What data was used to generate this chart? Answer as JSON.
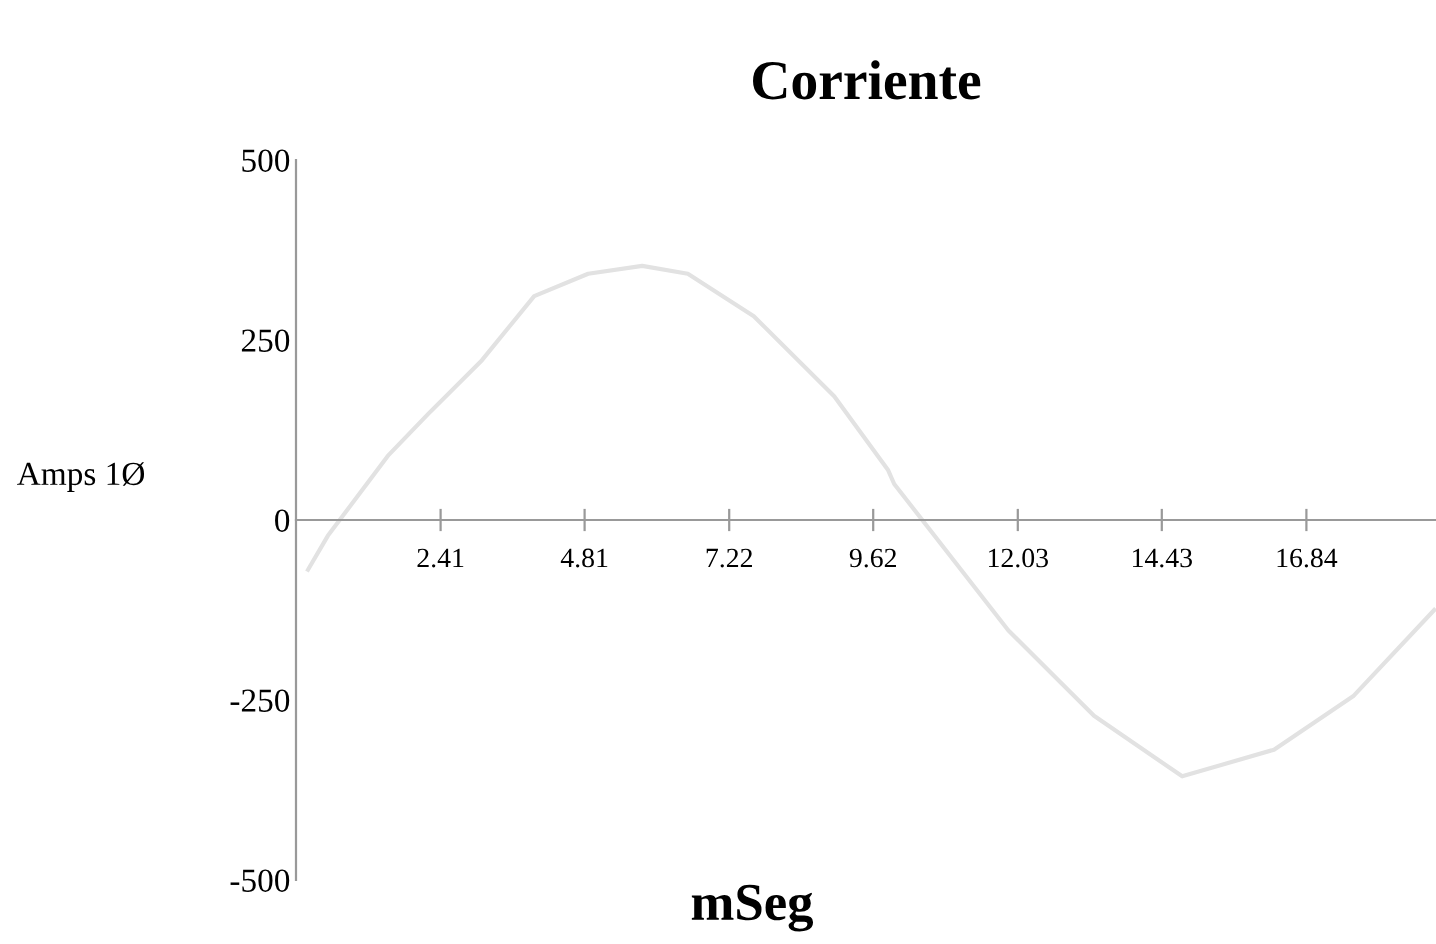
{
  "chart_data": {
    "type": "line",
    "title": "Corriente",
    "xlabel": "mSeg",
    "ylabel": "Amps 1Ø",
    "x": [
      0.2,
      0.53,
      1.53,
      2.2,
      3.1,
      3.97,
      4.87,
      5.77,
      6.53,
      7.63,
      8.97,
      9.87,
      9.97,
      11.87,
      13.3,
      14.77,
      16.3,
      17.63,
      18.97
    ],
    "series": [
      {
        "color": "#e2e2e2",
        "values": [
          -69,
          -22,
          89,
          147,
          222,
          311,
          342,
          353,
          342,
          283,
          172,
          69,
          50,
          -153,
          -272,
          -356,
          -319,
          -244,
          -125
        ]
      }
    ],
    "xlim": [
      0,
      19
    ],
    "ylim": [
      -500,
      500
    ],
    "xticks": [
      2.41,
      4.81,
      7.22,
      9.62,
      12.03,
      14.43,
      16.84
    ],
    "yticks": [
      -500,
      -250,
      0,
      250,
      500
    ],
    "grid": false,
    "legend": false,
    "marker": "none",
    "line_style": "solid"
  }
}
